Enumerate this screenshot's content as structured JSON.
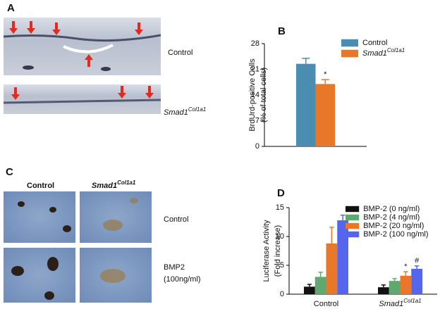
{
  "panels": {
    "a": "A",
    "b": "B",
    "c": "C",
    "d": "D"
  },
  "panel_a": {
    "row_labels": [
      "Control",
      {
        "base": "Smad1",
        "sup": "Col1a1"
      }
    ]
  },
  "panel_c": {
    "col_labels": [
      "Control",
      {
        "base": "Smad1",
        "sup": "Col1a1"
      }
    ],
    "row_labels": [
      "Control",
      "BMP2",
      "(100ng/ml)"
    ]
  },
  "chart_data": [
    {
      "type": "bar",
      "y_label": [
        "BrdUrd-positive Cells",
        "(% of total cells)"
      ],
      "categories": [
        null
      ],
      "series": [
        {
          "name": "Control",
          "color": "#4a8db0",
          "values": [
            22.5
          ],
          "errors": [
            1.5
          ]
        },
        {
          "name": {
            "base": "Smad1",
            "sup": "Col1a1"
          },
          "color": "#e8772a",
          "values": [
            17
          ],
          "errors": [
            1.2
          ]
        }
      ],
      "annotations": [
        "*"
      ],
      "ylim": [
        0,
        28
      ],
      "yticks": [
        0,
        7,
        14,
        21,
        28
      ],
      "legend": "upper right"
    },
    {
      "type": "bar",
      "y_label": [
        "Luciferase Activity",
        "(Fold increase)"
      ],
      "categories": [
        "Control",
        {
          "base": "Smad1",
          "sup": "Col1a1"
        }
      ],
      "series": [
        {
          "name": "BMP-2 (0 ng/ml)",
          "color": "#111111",
          "values": [
            1.3,
            1.2
          ],
          "errors": [
            0.4,
            0.4
          ]
        },
        {
          "name": "BMP-2 (4 ng/ml)",
          "color": "#5fa870",
          "values": [
            3.0,
            2.3
          ],
          "errors": [
            0.8,
            0.4
          ]
        },
        {
          "name": "BMP-2 (20 ng/ml)",
          "color": "#e8772a",
          "values": [
            8.8,
            3.2
          ],
          "errors": [
            2.8,
            0.7
          ]
        },
        {
          "name": "BMP-2 (100 ng/ml)",
          "color": "#5566ee",
          "values": [
            12.8,
            4.4
          ],
          "errors": [
            0.9,
            0.5
          ]
        }
      ],
      "annotations": [
        "*",
        "#"
      ],
      "ylim": [
        0,
        15
      ],
      "yticks": [
        0,
        5,
        10,
        15
      ],
      "legend": "upper right"
    }
  ]
}
